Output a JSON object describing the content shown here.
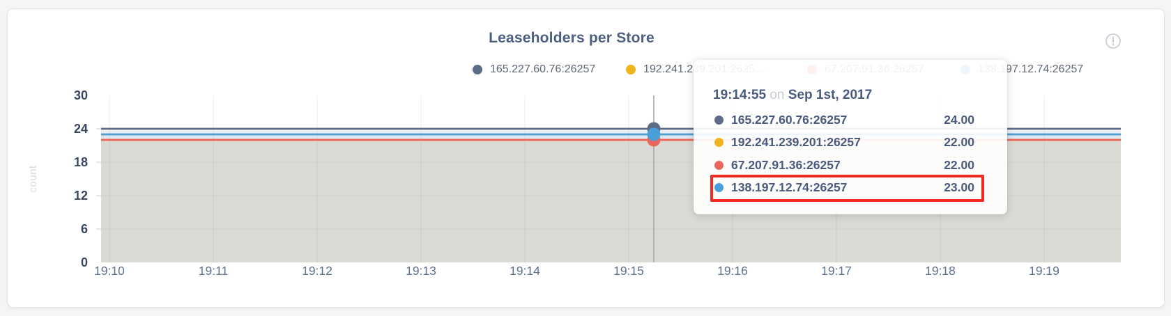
{
  "page": {
    "background_color": "#f5f5f6"
  },
  "card": {
    "title": "Leaseholders per Store",
    "title_color": "#4d5f80",
    "info_icon": "!"
  },
  "legend": {
    "items": [
      {
        "label": "165.227.60.76:26257",
        "color": "#5f6c87"
      },
      {
        "label": "192.241.239.201:2625…",
        "color": "#f0b51e"
      },
      {
        "label": "67.207.91.36:26257",
        "color": "#ea675f"
      },
      {
        "label": "138.197.12.74:26257",
        "color": "#499fd8"
      }
    ]
  },
  "tooltip": {
    "time": "19:14:55",
    "conjunction": "on",
    "date": "Sep 1st, 2017",
    "rows": [
      {
        "label": "165.227.60.76:26257",
        "value": "24.00",
        "color": "#5f6c87",
        "highlighted": false
      },
      {
        "label": "192.241.239.201:26257",
        "value": "22.00",
        "color": "#f0b51e",
        "highlighted": false
      },
      {
        "label": "67.207.91.36:26257",
        "value": "22.00",
        "color": "#ea675f",
        "highlighted": false
      },
      {
        "label": "138.197.12.74:26257",
        "value": "23.00",
        "color": "#499fd8",
        "highlighted": true
      }
    ],
    "highlight_color": "#ee2b24"
  },
  "chart_data": {
    "type": "area",
    "title": "Leaseholders per Store",
    "ylabel": "count",
    "xlabel": "",
    "ylim": [
      0,
      30
    ],
    "yticks": [
      0,
      6,
      12,
      18,
      24,
      30
    ],
    "x_tick_labels": [
      "19:10",
      "19:11",
      "19:12",
      "19:13",
      "19:14",
      "19:15",
      "19:16",
      "19:17",
      "19:18",
      "19:19"
    ],
    "grid": true,
    "legend_position": "top",
    "series": [
      {
        "name": "165.227.60.76:26257",
        "color": "#5f6c87",
        "fill_opacity": 0.115,
        "value": 24
      },
      {
        "name": "192.241.239.201:26257",
        "color": "#f0b51e",
        "fill_opacity": 0.105,
        "value": 22
      },
      {
        "name": "67.207.91.36:26257",
        "color": "#ea675f",
        "fill_opacity": 0.04,
        "value": 22
      },
      {
        "name": "138.197.12.74:26257",
        "color": "#499fd8",
        "fill_opacity": 0.095,
        "value": 23
      }
    ],
    "hover_point": {
      "time": "19:14:55",
      "date": "Sep 1st, 2017",
      "values": [
        24,
        22,
        22,
        23
      ]
    }
  }
}
